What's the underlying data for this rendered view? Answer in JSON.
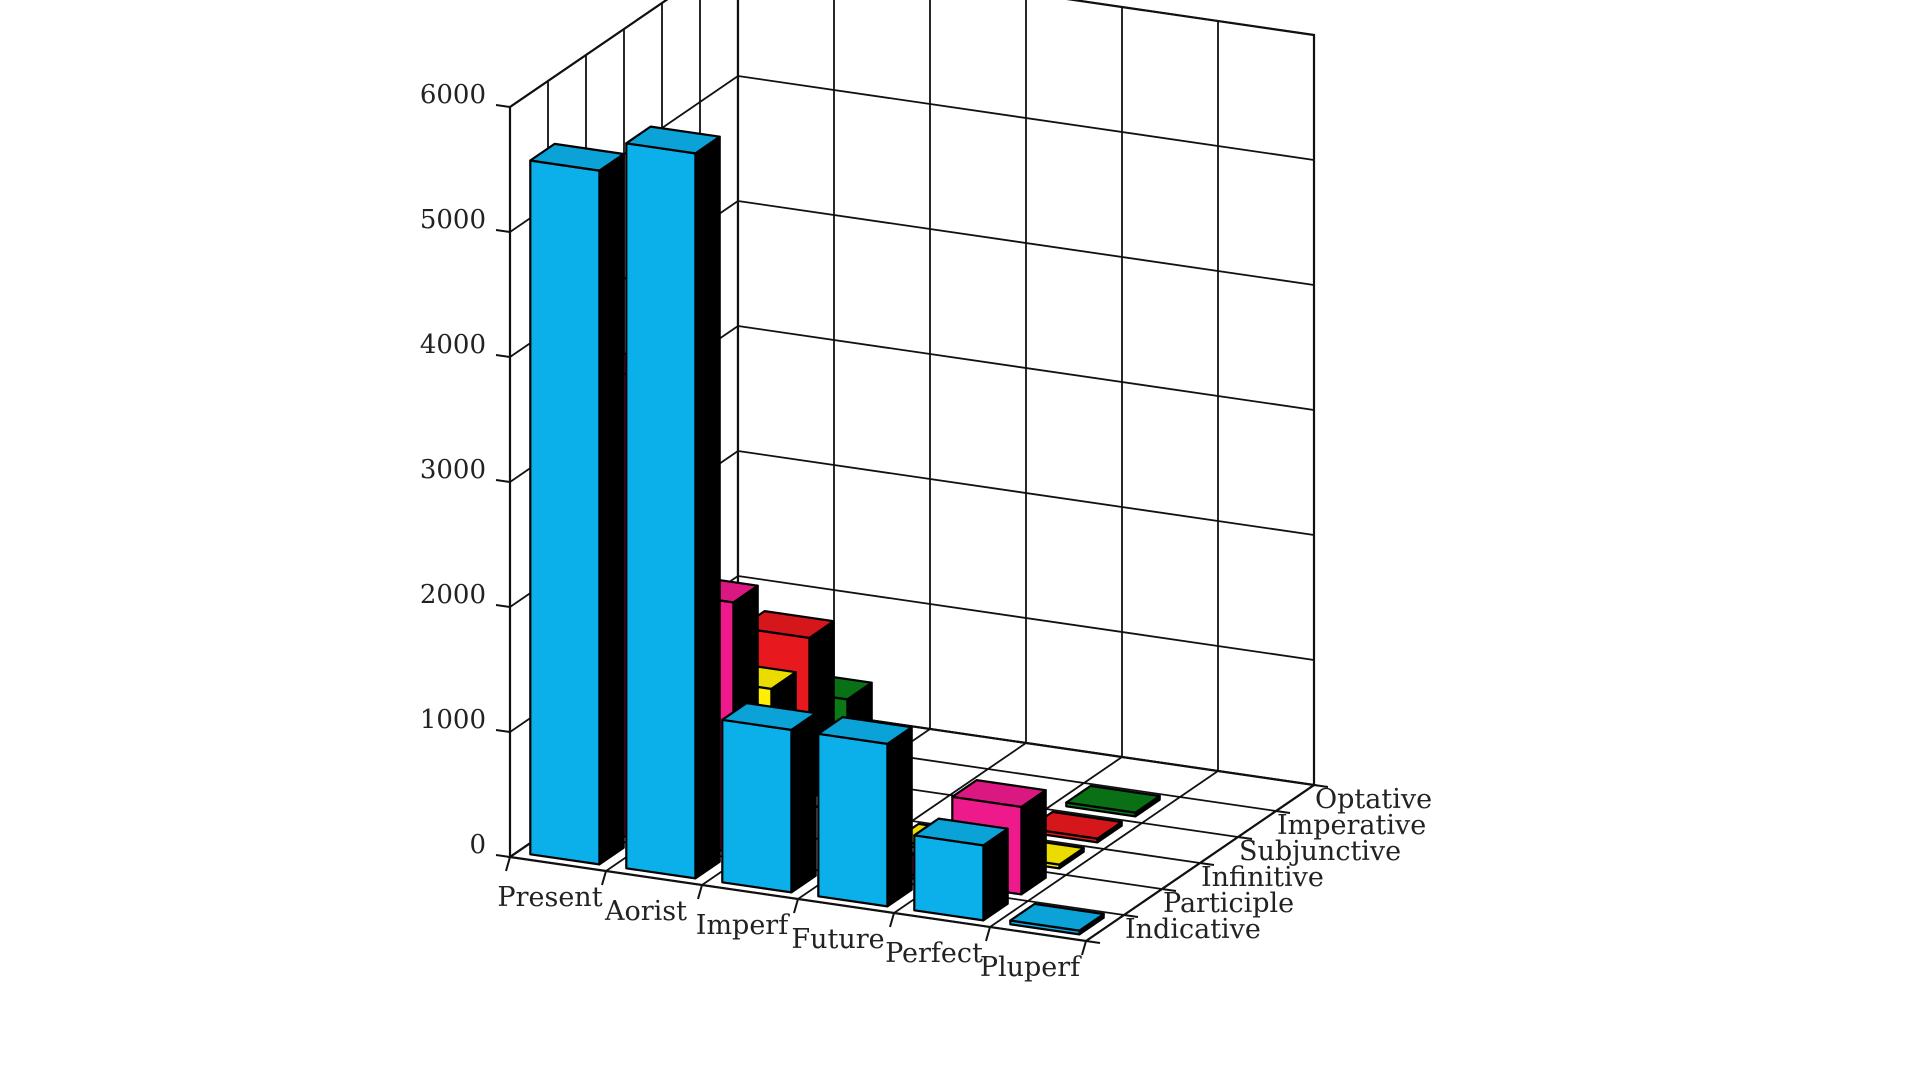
{
  "chart_data": {
    "type": "bar",
    "style": "3d",
    "grid": true,
    "categories": [
      "Present",
      "Aorist",
      "Imperf",
      "Future",
      "Perfect",
      "Pluperf"
    ],
    "series": [
      {
        "name": "Indicative",
        "color": "#0bb0ea",
        "values": [
          5550,
          5800,
          1300,
          1300,
          600,
          30
        ]
      },
      {
        "name": "Participle",
        "color": "#ee1a8c",
        "values": [
          3700,
          2000,
          0,
          30,
          700,
          0
        ]
      },
      {
        "name": "Infinitive",
        "color": "#ffef00",
        "values": [
          1000,
          1100,
          0,
          30,
          30,
          0
        ]
      },
      {
        "name": "Subjunctive",
        "color": "#e8191e",
        "values": [
          400,
          1300,
          0,
          0,
          30,
          0
        ]
      },
      {
        "name": "Imperative",
        "color": "#0a7a17",
        "values": [
          900,
          600,
          0,
          0,
          30,
          0
        ]
      },
      {
        "name": "Optative",
        "color": "#111111",
        "values": [
          30,
          30,
          0,
          0,
          0,
          0
        ]
      }
    ],
    "ylim": [
      0,
      6000
    ],
    "yticks": [
      "0",
      "1000",
      "2000",
      "3000",
      "4000",
      "5000",
      "6000"
    ]
  }
}
